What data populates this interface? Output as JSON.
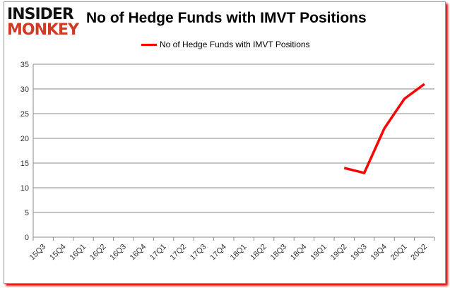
{
  "logo": {
    "line1": "INSIDER",
    "line2": "MONKEY"
  },
  "chart_data": {
    "type": "line",
    "title": "No of Hedge Funds with IMVT Positions",
    "categories": [
      "15Q3",
      "15Q4",
      "16Q1",
      "16Q2",
      "16Q3",
      "16Q4",
      "17Q1",
      "17Q2",
      "17Q3",
      "17Q4",
      "18Q1",
      "18Q2",
      "18Q3",
      "18Q4",
      "19Q1",
      "19Q2",
      "19Q3",
      "19Q4",
      "20Q1",
      "20Q2"
    ],
    "series": [
      {
        "name": "No of Hedge Funds with IMVT Positions",
        "color": "#ff0000",
        "values": [
          null,
          null,
          null,
          null,
          null,
          null,
          null,
          null,
          null,
          null,
          null,
          null,
          null,
          null,
          null,
          14,
          13,
          22,
          28,
          31
        ]
      }
    ],
    "ylim": [
      0,
      35
    ],
    "yticks": [
      0,
      5,
      10,
      15,
      20,
      25,
      30,
      35
    ],
    "grid": true,
    "legend": "top"
  }
}
